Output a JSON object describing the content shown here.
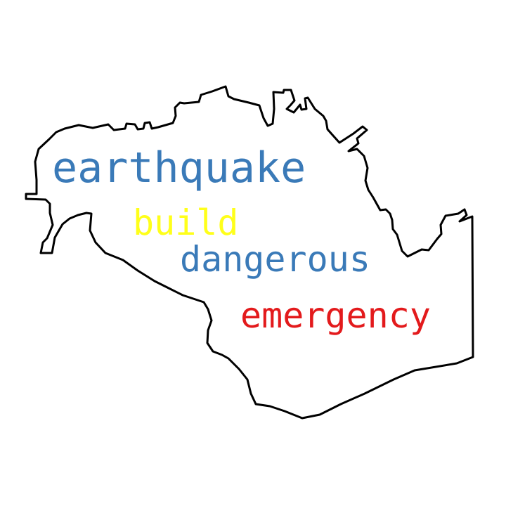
{
  "words": [
    {
      "text": "earthquake",
      "color": "#3a7ab8"
    },
    {
      "text": "build",
      "color": "#ffff1a"
    },
    {
      "text": "dangerous",
      "color": "#3a7ab8"
    },
    {
      "text": "emergency",
      "color": "#e31a1c"
    }
  ],
  "outline_color": "#000000"
}
